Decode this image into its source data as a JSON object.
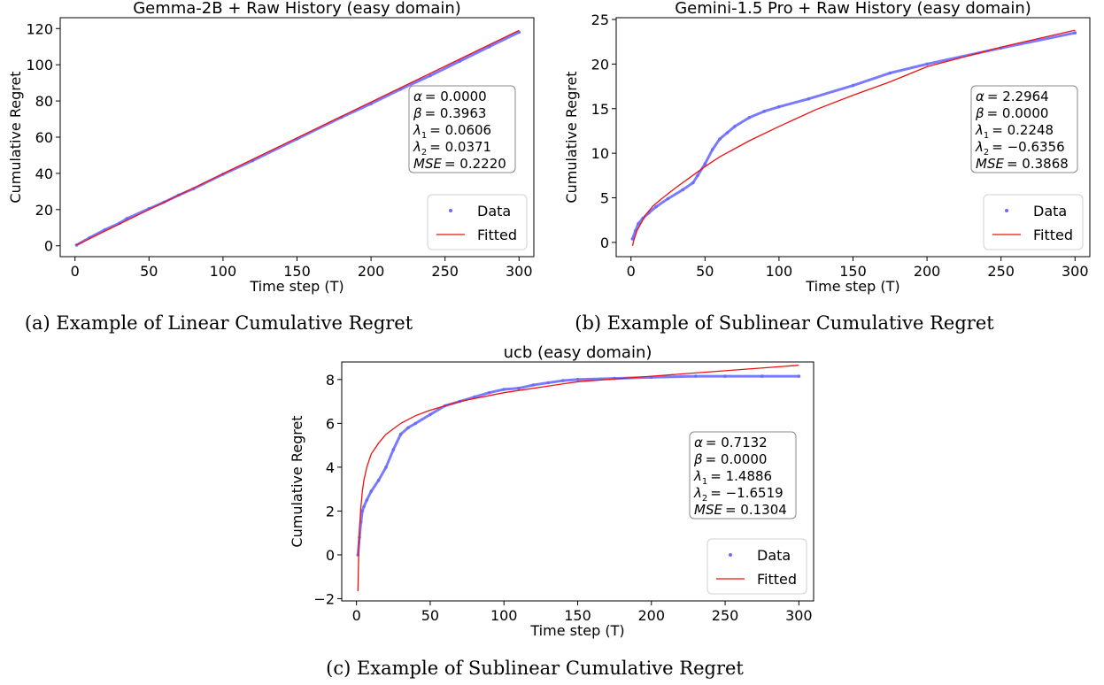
{
  "chart_data": [
    {
      "type": "line",
      "title": "Gemma-2B + Raw History (easy domain)",
      "xlabel": "Time step (T)",
      "ylabel": "Cumulative Regret",
      "xlim": [
        -10,
        310
      ],
      "ylim": [
        -6,
        126
      ],
      "xticks": [
        0,
        50,
        100,
        150,
        200,
        250,
        300
      ],
      "yticks": [
        0,
        20,
        40,
        60,
        80,
        100,
        120
      ],
      "grid": false,
      "legend_placement": "lower-right",
      "series": [
        {
          "name": "Data",
          "kind": "points",
          "color": "#6b6bff",
          "x": [
            1,
            10,
            20,
            30,
            35,
            50,
            60,
            70,
            80,
            100,
            120,
            150,
            180,
            200,
            220,
            240,
            260,
            280,
            300
          ],
          "y": [
            0.4,
            4.5,
            8.8,
            12.5,
            15,
            20.5,
            24,
            28,
            31.5,
            39.5,
            47,
            59,
            71,
            78.5,
            86.5,
            94,
            102,
            110,
            118
          ]
        },
        {
          "name": "Fitted",
          "kind": "line",
          "color": "#ee1111",
          "x": [
            1,
            50,
            100,
            150,
            200,
            250,
            300
          ],
          "y": [
            0.4,
            20,
            39.8,
            59.6,
            79.4,
            99.2,
            119
          ]
        }
      ],
      "annotation": [
        {
          "sym": "α",
          "sub": "",
          "val": "= 0.0000"
        },
        {
          "sym": "β",
          "sub": "",
          "val": "= 0.3963"
        },
        {
          "sym": "λ",
          "sub": "1",
          "val": "= 0.0606"
        },
        {
          "sym": "λ",
          "sub": "2",
          "val": "= 0.0371"
        },
        {
          "sym": "MSE",
          "sub": "",
          "val": "= 0.2220"
        }
      ],
      "caption": "(a) Example of Linear Cumulative Regret"
    },
    {
      "type": "line",
      "title": "Gemini-1.5 Pro + Raw History (easy domain)",
      "xlabel": "Time step (T)",
      "ylabel": "Cumulative Regret",
      "xlim": [
        -10,
        310
      ],
      "ylim": [
        -1.6,
        25.2
      ],
      "xticks": [
        0,
        50,
        100,
        150,
        200,
        250,
        300
      ],
      "yticks": [
        0,
        5,
        10,
        15,
        20,
        25
      ],
      "grid": false,
      "legend_placement": "lower-right",
      "series": [
        {
          "name": "Data",
          "kind": "points",
          "color": "#6b6bff",
          "x": [
            1,
            3,
            5,
            8,
            12,
            17,
            25,
            35,
            42,
            45,
            50,
            55,
            60,
            65,
            70,
            80,
            90,
            100,
            120,
            150,
            175,
            200,
            250,
            300
          ],
          "y": [
            0.4,
            1.3,
            2.1,
            2.7,
            3.3,
            4.0,
            4.9,
            5.9,
            6.7,
            7.5,
            8.8,
            10.4,
            11.6,
            12.3,
            13.0,
            14.0,
            14.7,
            15.2,
            16.1,
            17.6,
            19.0,
            20.0,
            21.8,
            23.5
          ]
        },
        {
          "name": "Fitted",
          "kind": "line",
          "color": "#ee1111",
          "x": [
            1,
            2,
            4,
            7,
            10,
            15,
            20,
            30,
            40,
            50,
            60,
            80,
            100,
            125,
            150,
            175,
            200,
            250,
            300
          ],
          "y": [
            -0.4,
            0.3,
            1.3,
            2.2,
            3.1,
            4.1,
            4.8,
            6.1,
            7.3,
            8.5,
            9.6,
            11.4,
            13.0,
            14.9,
            16.5,
            18.0,
            19.7,
            21.9,
            23.8
          ]
        }
      ],
      "annotation": [
        {
          "sym": "α",
          "sub": "",
          "val": "= 2.2964"
        },
        {
          "sym": "β",
          "sub": "",
          "val": "= 0.0000"
        },
        {
          "sym": "λ",
          "sub": "1",
          "val": "= 0.2248"
        },
        {
          "sym": "λ",
          "sub": "2",
          "val": "= −0.6356"
        },
        {
          "sym": "MSE",
          "sub": "",
          "val": "= 0.3868"
        }
      ],
      "caption": "(b) Example of Sublinear Cumulative Regret"
    },
    {
      "type": "line",
      "title": "ucb (easy domain)",
      "xlabel": "Time step (T)",
      "ylabel": "Cumulative Regret",
      "xlim": [
        -10,
        310
      ],
      "ylim": [
        -2.1,
        8.8
      ],
      "xticks": [
        0,
        50,
        100,
        150,
        200,
        250,
        300
      ],
      "yticks": [
        -2,
        0,
        2,
        4,
        6,
        8
      ],
      "grid": false,
      "legend_placement": "lower-right",
      "series": [
        {
          "name": "Data",
          "kind": "points",
          "color": "#6b6bff",
          "x": [
            1,
            2,
            3,
            4,
            5,
            7,
            10,
            15,
            20,
            25,
            30,
            35,
            40,
            50,
            60,
            70,
            80,
            90,
            100,
            110,
            120,
            130,
            140,
            150,
            175,
            200,
            230,
            250,
            275,
            300
          ],
          "y": [
            0.0,
            0.8,
            1.5,
            2.0,
            2.2,
            2.5,
            2.9,
            3.4,
            4.0,
            4.8,
            5.5,
            5.8,
            6.0,
            6.4,
            6.8,
            7.0,
            7.2,
            7.4,
            7.55,
            7.6,
            7.75,
            7.85,
            7.95,
            8.0,
            8.05,
            8.1,
            8.15,
            8.15,
            8.15,
            8.15
          ]
        },
        {
          "name": "Fitted",
          "kind": "line",
          "color": "#ee1111",
          "x": [
            1,
            1.5,
            2,
            3,
            4,
            5,
            7,
            10,
            15,
            20,
            30,
            40,
            50,
            70,
            100,
            150,
            200,
            250,
            300
          ],
          "y": [
            -1.65,
            0.1,
            1.2,
            2.2,
            2.9,
            3.4,
            4.0,
            4.6,
            5.1,
            5.5,
            6.0,
            6.35,
            6.6,
            7.0,
            7.4,
            7.9,
            8.15,
            8.4,
            8.65
          ]
        }
      ],
      "annotation": [
        {
          "sym": "α",
          "sub": "",
          "val": "= 0.7132"
        },
        {
          "sym": "β",
          "sub": "",
          "val": "= 0.0000"
        },
        {
          "sym": "λ",
          "sub": "1",
          "val": "= 1.4886"
        },
        {
          "sym": "λ",
          "sub": "2",
          "val": "= −1.6519"
        },
        {
          "sym": "MSE",
          "sub": "",
          "val": "= 0.1304"
        }
      ],
      "caption": "(c) Example of Sublinear Cumulative Regret"
    }
  ]
}
